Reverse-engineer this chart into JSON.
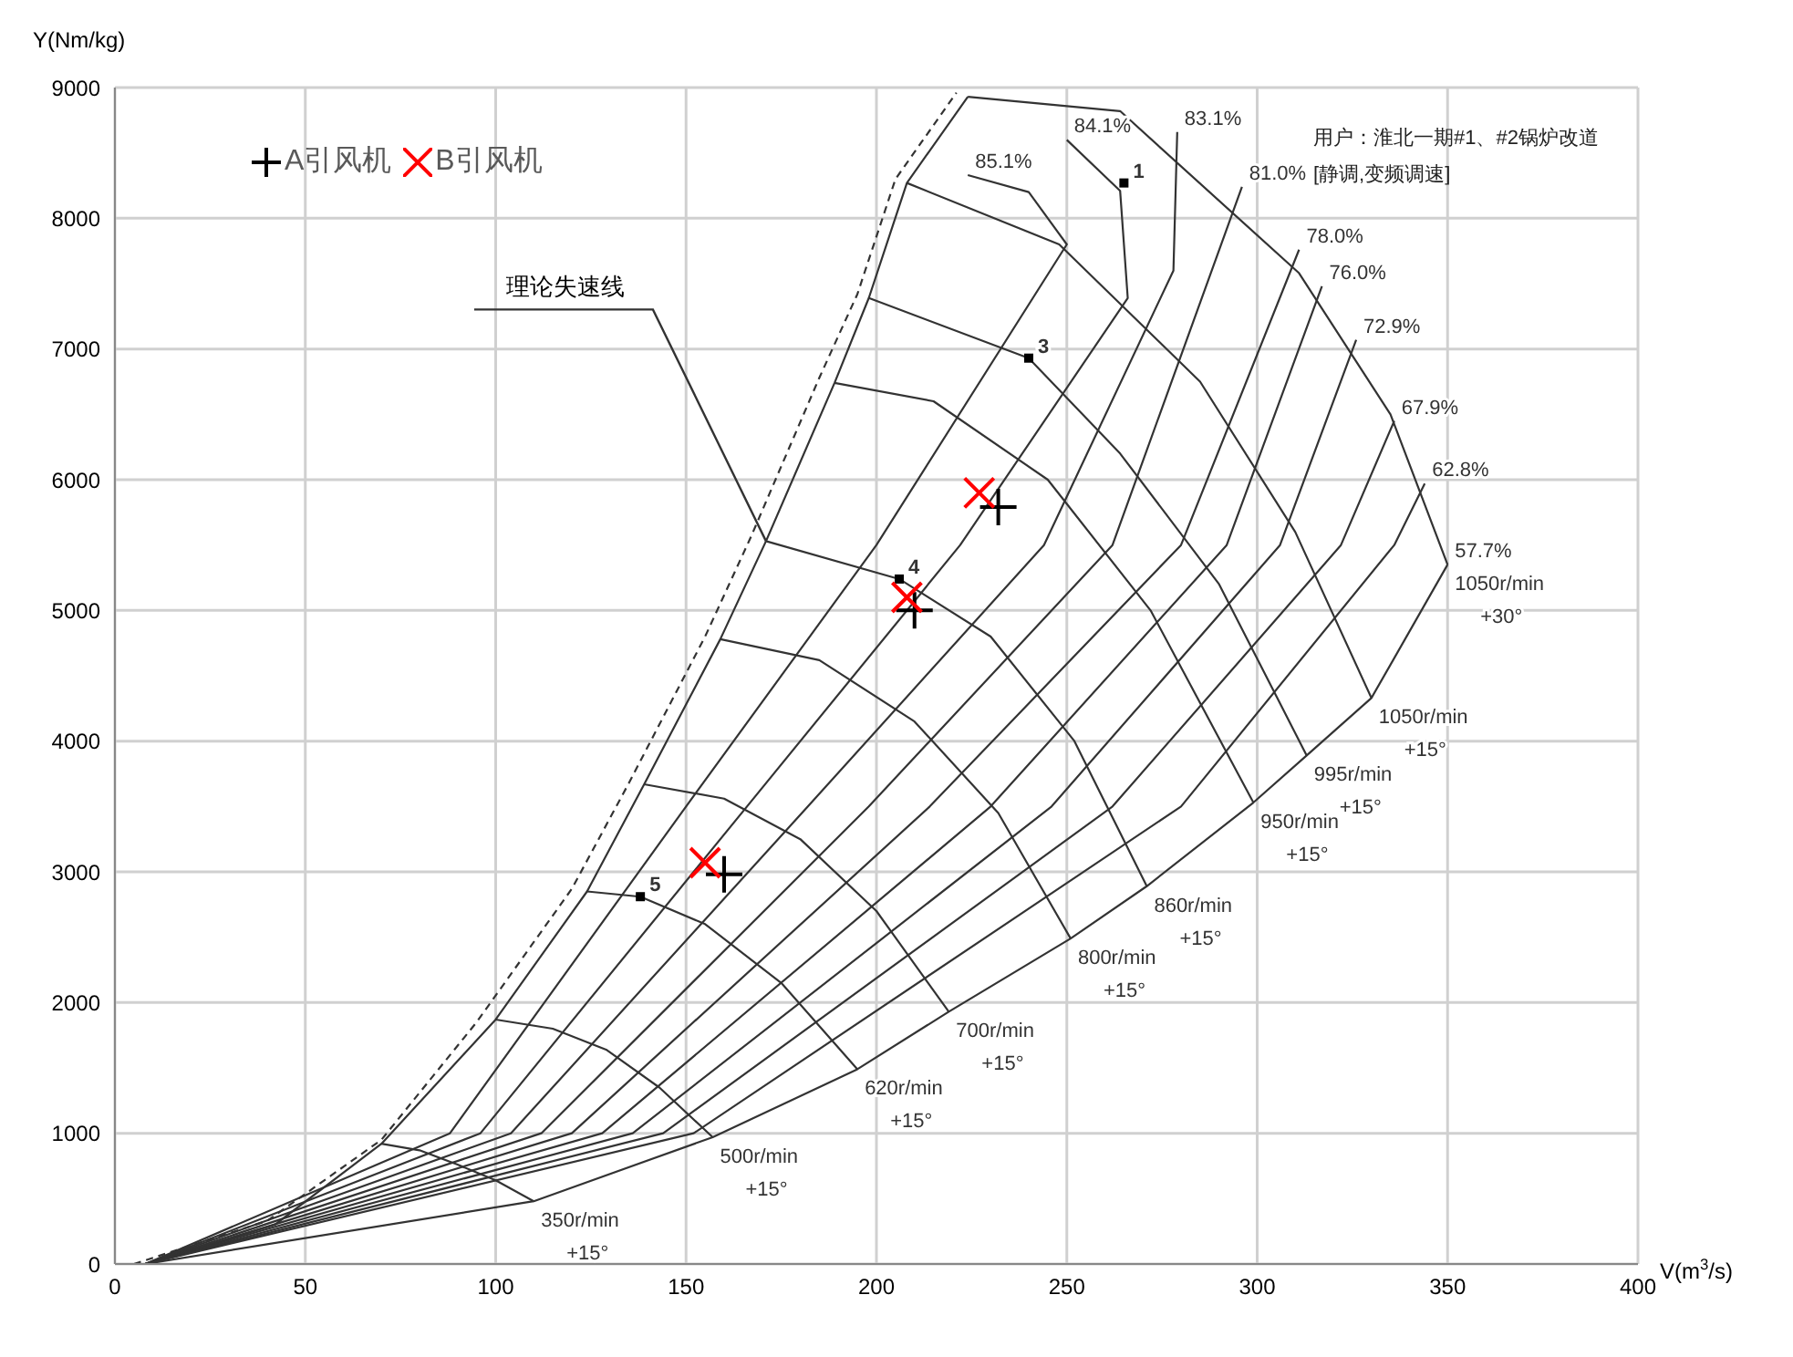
{
  "chart_data": {
    "type": "line",
    "xlabel": "V(m$^{3}$/s)",
    "ylabel": "Y(Nm/kg)",
    "xlim": [
      0,
      400
    ],
    "xticks": [
      0,
      50,
      100,
      150,
      200,
      250,
      300,
      350,
      400
    ],
    "ylim": [
      0,
      9000
    ],
    "yticks": [
      0,
      1000,
      2000,
      3000,
      4000,
      5000,
      6000,
      7000,
      8000,
      9000
    ],
    "grid": true,
    "legend": "top left",
    "annotations": [
      "用户：淮北一期#1、#2锅炉改道",
      "[静调,变频调速]",
      {
        "text": "理论失速线",
        "x": 171,
        "y": 5530
      },
      {
        "text": "1",
        "x": 265,
        "y": 8270
      },
      {
        "text": "3",
        "x": 240,
        "y": 6930
      },
      {
        "text": "4",
        "x": 206,
        "y": 5240
      },
      {
        "text": "5",
        "x": 138,
        "y": 2810
      }
    ],
    "series": [
      {
        "color": "#333333",
        "line_style": "dashed",
        "marker": "none",
        "x": [
          5,
          40,
          70,
          95,
          120,
          135,
          155,
          167,
          185,
          195,
          205,
          221
        ],
        "values": [
          0,
          330,
          950,
          1850,
          2870,
          3680,
          4800,
          5560,
          6780,
          7420,
          8300,
          8960
        ]
      },
      {
        "color": "#333333",
        "line_style": "solid",
        "marker": "none",
        "x": [
          8,
          42,
          70,
          100,
          124,
          139,
          159,
          171,
          189,
          198,
          208,
          224
        ],
        "values": [
          0,
          300,
          920,
          1870,
          2850,
          3670,
          4780,
          5530,
          6740,
          7390,
          8270,
          8930
        ]
      },
      {
        "name": "350r/min +15°",
        "color": "#333333",
        "line_style": "solid",
        "marker": "none",
        "x": [
          70,
          80,
          90,
          100,
          110
        ],
        "values": [
          920,
          870,
          760,
          640,
          480
        ]
      },
      {
        "name": "500r/min +15°",
        "color": "#333333",
        "line_style": "solid",
        "marker": "none",
        "x": [
          100,
          115,
          129,
          143,
          157
        ],
        "values": [
          1870,
          1800,
          1640,
          1350,
          970
        ]
      },
      {
        "name": "620r/min +15°",
        "color": "#333333",
        "line_style": "solid",
        "marker": "none",
        "x": [
          124,
          138,
          155,
          175,
          195
        ],
        "values": [
          2850,
          2810,
          2600,
          2150,
          1490
        ]
      },
      {
        "name": "700r/min +15°",
        "color": "#333333",
        "line_style": "solid",
        "marker": "none",
        "x": [
          139,
          160,
          180,
          200,
          219
        ],
        "values": [
          3670,
          3560,
          3250,
          2700,
          1930
        ]
      },
      {
        "name": "800r/min +15°",
        "color": "#333333",
        "line_style": "solid",
        "marker": "none",
        "x": [
          159,
          185,
          210,
          232,
          251
        ],
        "values": [
          4780,
          4620,
          4150,
          3450,
          2490
        ]
      },
      {
        "name": "860r/min +15°",
        "color": "#333333",
        "line_style": "solid",
        "marker": "none",
        "x": [
          171,
          206,
          230,
          252,
          271
        ],
        "values": [
          5530,
          5240,
          4800,
          4000,
          2890
        ]
      },
      {
        "name": "950r/min +15°",
        "color": "#333333",
        "line_style": "solid",
        "marker": "none",
        "x": [
          189,
          215,
          245,
          272,
          299
        ],
        "values": [
          6740,
          6600,
          6000,
          5000,
          3530
        ]
      },
      {
        "name": "995r/min +15°",
        "color": "#333333",
        "line_style": "solid",
        "marker": "none",
        "x": [
          198,
          240,
          264,
          290,
          313
        ],
        "values": [
          7390,
          6930,
          6200,
          5200,
          3890
        ]
      },
      {
        "name": "1050r/min +15°",
        "color": "#333333",
        "line_style": "solid",
        "marker": "none",
        "x": [
          208,
          248,
          285,
          310,
          330
        ],
        "values": [
          8270,
          7800,
          6750,
          5600,
          4330
        ]
      },
      {
        "name": "1050r/min +30°",
        "color": "#333333",
        "line_style": "solid",
        "marker": "none",
        "x": [
          224,
          264,
          311,
          335,
          350
        ],
        "values": [
          8930,
          8820,
          7580,
          6500,
          5350
        ]
      },
      {
        "name": "85.1%",
        "color": "#333333",
        "line_style": "solid",
        "marker": "none",
        "x": [
          8,
          88,
          150,
          200,
          250,
          240,
          224
        ],
        "values": [
          0,
          1000,
          3500,
          5500,
          7800,
          8200,
          8330
        ]
      },
      {
        "name": "84.1%",
        "color": "#333333",
        "line_style": "solid",
        "marker": "none",
        "x": [
          8,
          96,
          166,
          222,
          266,
          264,
          250
        ],
        "values": [
          0,
          1000,
          3500,
          5500,
          7390,
          8210,
          8600
        ]
      },
      {
        "name": "83.1%",
        "color": "#333333",
        "line_style": "solid",
        "marker": "none",
        "x": [
          8,
          104,
          182,
          244,
          278,
          279
        ],
        "values": [
          0,
          1000,
          3500,
          5500,
          7600,
          8660
        ]
      },
      {
        "name": "81.0%",
        "color": "#333333",
        "line_style": "solid",
        "marker": "none",
        "x": [
          8,
          112,
          198,
          262,
          296
        ],
        "values": [
          0,
          1000,
          3500,
          5500,
          8240
        ]
      },
      {
        "name": "78.0%",
        "color": "#333333",
        "line_style": "solid",
        "marker": "none",
        "x": [
          8,
          120,
          214,
          280,
          311
        ],
        "values": [
          0,
          1000,
          3500,
          5500,
          7760
        ]
      },
      {
        "name": "76.0%",
        "color": "#333333",
        "line_style": "solid",
        "marker": "none",
        "x": [
          8,
          128,
          230,
          292,
          317
        ],
        "values": [
          0,
          1000,
          3500,
          5500,
          7480
        ]
      },
      {
        "name": "72.9%",
        "color": "#333333",
        "line_style": "solid",
        "marker": "none",
        "x": [
          8,
          136,
          246,
          306,
          326
        ],
        "values": [
          0,
          1000,
          3500,
          5500,
          7070
        ]
      },
      {
        "name": "67.9%",
        "color": "#333333",
        "line_style": "solid",
        "marker": "none",
        "x": [
          8,
          144,
          262,
          322,
          336
        ],
        "values": [
          0,
          1000,
          3500,
          5500,
          6450
        ]
      },
      {
        "name": "62.8%",
        "color": "#333333",
        "line_style": "solid",
        "marker": "none",
        "x": [
          8,
          152,
          280,
          336,
          344
        ],
        "values": [
          0,
          1000,
          3500,
          5500,
          5970
        ]
      },
      {
        "name": "57.7%",
        "color": "#333333",
        "line_style": "solid",
        "marker": "none",
        "x": [
          8,
          110,
          157,
          195,
          219,
          251,
          271,
          299,
          313,
          330,
          350
        ],
        "values": [
          0,
          480,
          970,
          1490,
          1930,
          2490,
          2890,
          3530,
          3890,
          4330,
          5350
        ]
      },
      {
        "type": "scatter",
        "color": "#000000",
        "marker": "square",
        "x": [
          265,
          240,
          206,
          138
        ],
        "values": [
          8270,
          6930,
          5240,
          2810
        ]
      },
      {
        "type": "scatter",
        "name": "A引风机",
        "color": "#000000",
        "marker": "plus",
        "x": [
          160,
          210,
          232
        ],
        "values": [
          2980,
          5000,
          5790
        ]
      },
      {
        "type": "scatter",
        "name": "B引风机",
        "color": "#ff0000",
        "marker": "cross",
        "x": [
          155,
          208,
          227
        ],
        "values": [
          3070,
          5100,
          5900
        ]
      }
    ]
  }
}
